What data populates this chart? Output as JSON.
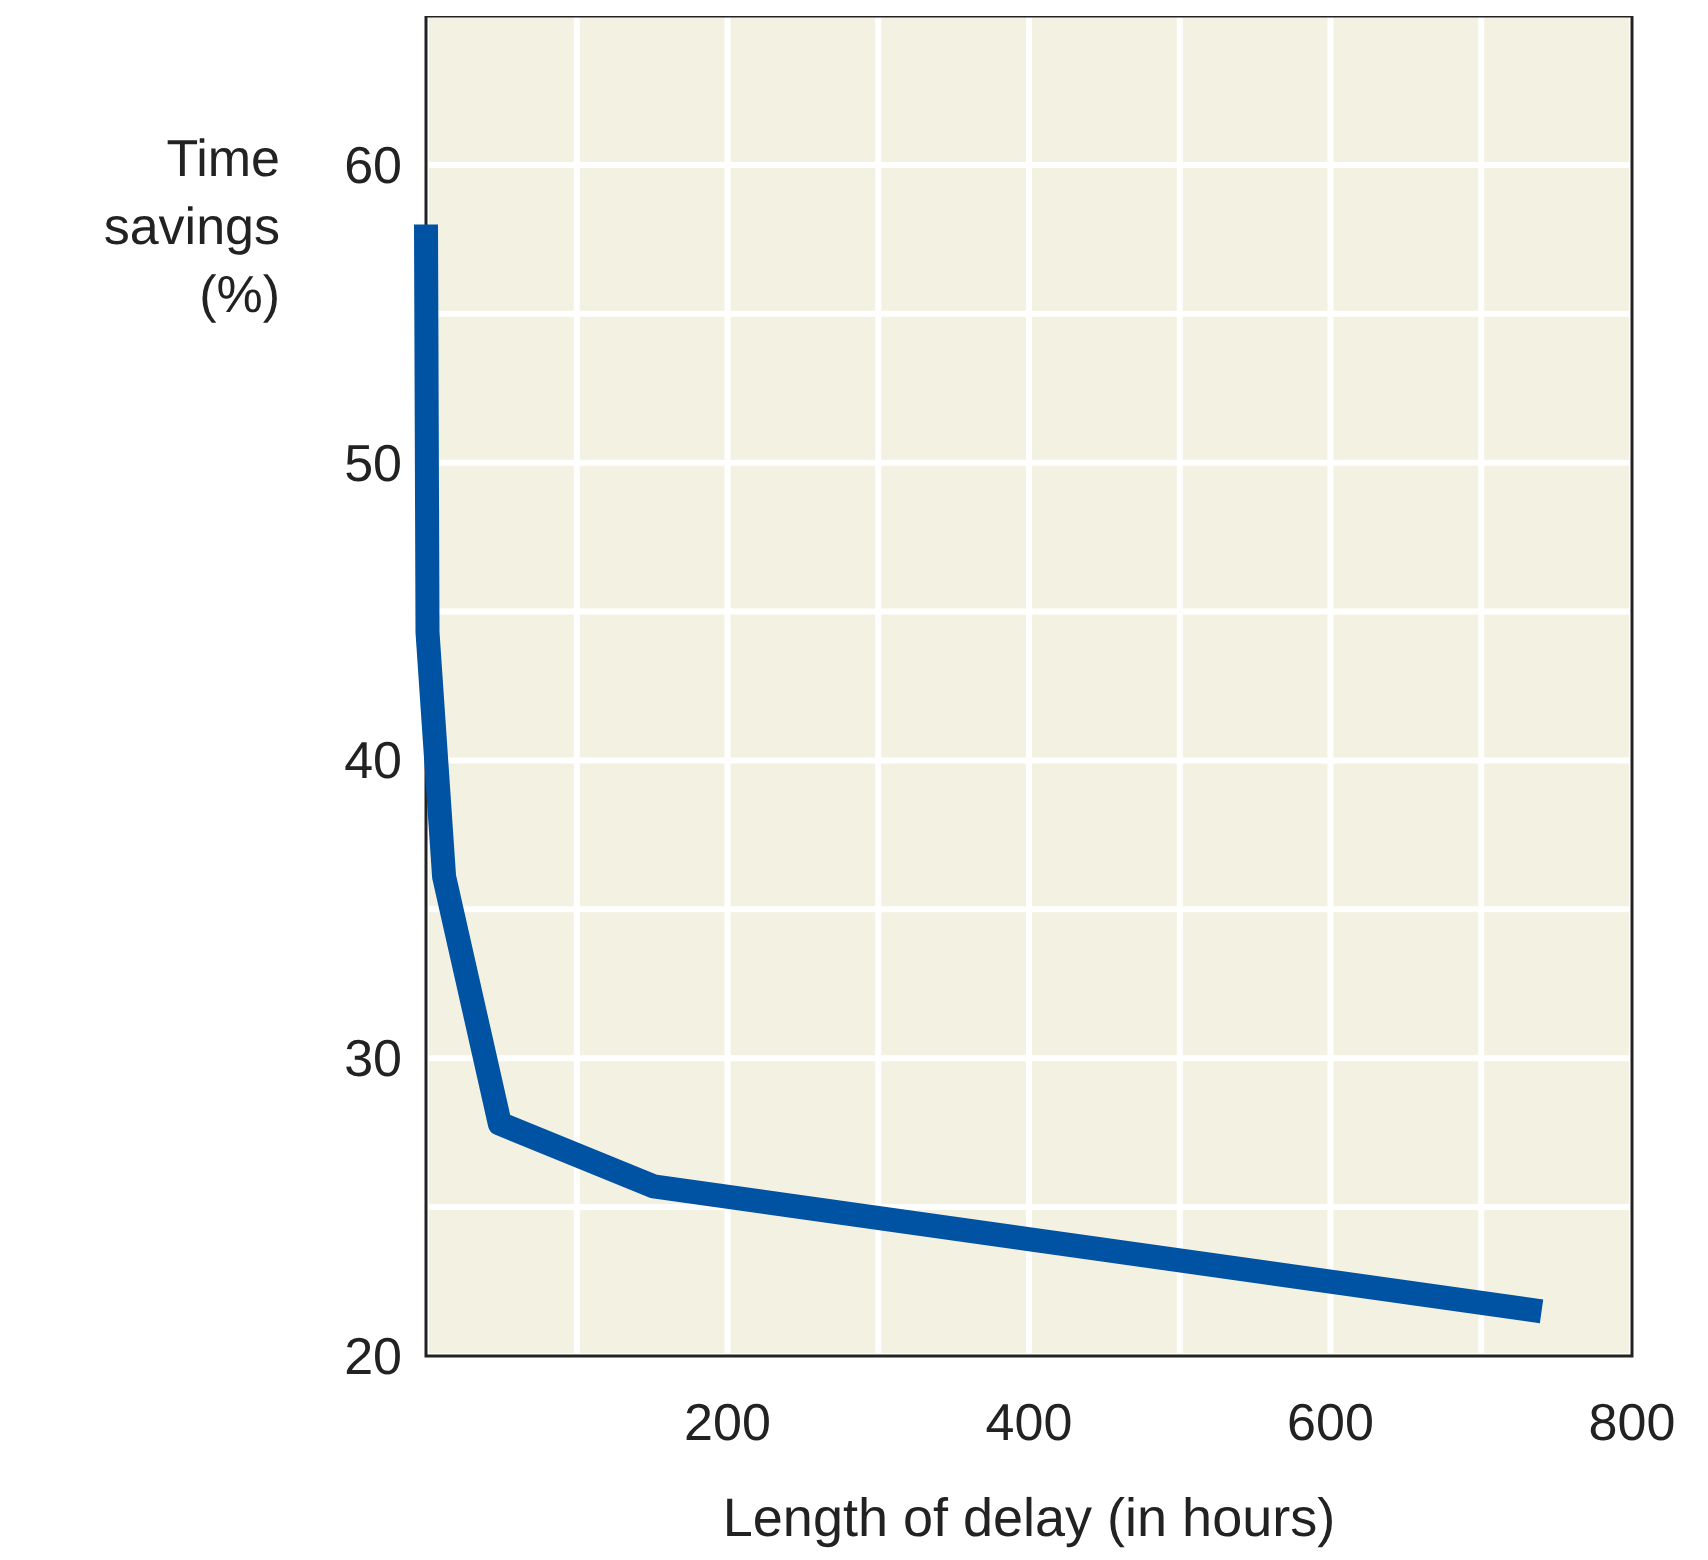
{
  "chart_data": {
    "type": "line",
    "xlabel": "Length of delay (in hours)",
    "ylabel": "Time savings (%)",
    "x": [
      0,
      1,
      12,
      49,
      151,
      740
    ],
    "series": [
      {
        "color": "#0052a3",
        "values": [
          58,
          44.3,
          36.1,
          27.8,
          25.7,
          21.5
        ]
      }
    ],
    "xlim": [
      0,
      800
    ],
    "ylim": [
      20,
      65
    ],
    "xticks": [
      {
        "value": 0,
        "label": null
      },
      {
        "value": 100,
        "label": null
      },
      200,
      {
        "value": 300,
        "label": null
      },
      400,
      {
        "value": 500,
        "label": null
      },
      600,
      {
        "value": 700,
        "label": null
      },
      800
    ],
    "yticks": [
      20,
      {
        "value": 25,
        "label": null
      },
      30,
      {
        "value": 35,
        "label": null
      },
      40,
      {
        "value": 45,
        "label": null
      },
      50,
      {
        "value": 55,
        "label": null
      },
      60
    ],
    "grid": true,
    "marker": "none",
    "line_style": "solid"
  }
}
